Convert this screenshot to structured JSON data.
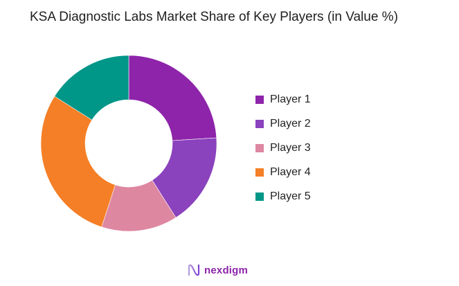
{
  "chart_data": {
    "type": "pie",
    "subtype": "donut",
    "title": "KSA Diagnostic Labs Market Share of Key Players (in Value %)",
    "categories": [
      "Player 1",
      "Player 2",
      "Player 3",
      "Player 4",
      "Player 5"
    ],
    "values": [
      24,
      17,
      14,
      29,
      16
    ],
    "colors": [
      "#8E24AA",
      "#8B42BD",
      "#DE87A1",
      "#F47F26",
      "#009688"
    ],
    "legend_position": "right",
    "start_angle": "12 o'clock, clockwise"
  },
  "header": {
    "title": "KSA Diagnostic Labs Market Share of Key Players (in Value %)"
  },
  "legend": {
    "items": [
      {
        "label": "Player 1",
        "color": "#8E24AA"
      },
      {
        "label": "Player 2",
        "color": "#8B42BD"
      },
      {
        "label": "Player 3",
        "color": "#DE87A1"
      },
      {
        "label": "Player 4",
        "color": "#F47F26"
      },
      {
        "label": "Player 5",
        "color": "#009688"
      }
    ]
  },
  "footer": {
    "logo_text": "nexdigm"
  }
}
